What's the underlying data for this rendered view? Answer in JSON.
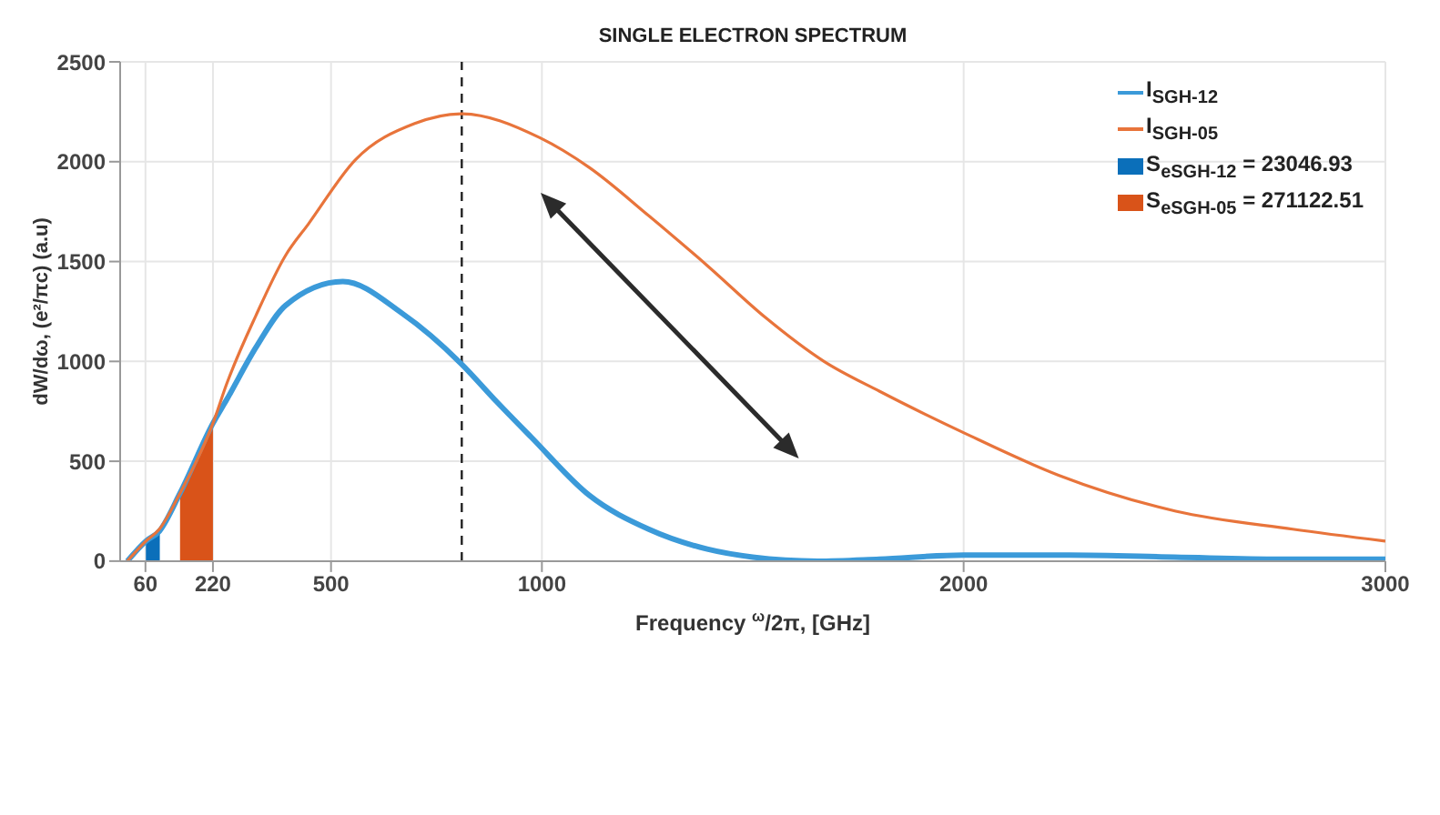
{
  "chart_data": {
    "type": "line",
    "title": "SINGLE ELECTRON SPECTRUM",
    "xlabel": "Frequency $^{ω}$/2π, [GHz]",
    "ylabel": "dW/dω, (e²/πc) (a.u)",
    "xlim": [
      0,
      3000
    ],
    "xticks": [
      60,
      220,
      500,
      1000,
      2000,
      3000
    ],
    "ylim": [
      0,
      2500
    ],
    "yticks": [
      0,
      500,
      1000,
      1500,
      2000,
      2500
    ],
    "grid": true,
    "legend": "top right",
    "marker": "none",
    "line_style": "solid",
    "ref_lines": [
      {
        "axis": "x",
        "value": 810,
        "color": "#222222",
        "line_style": "dashed"
      }
    ],
    "series": [
      {
        "name": "I$_{SGH-12}$",
        "color": "#3b9ad9",
        "x": [
          17,
          61,
          93,
          142,
          220,
          253,
          322,
          392,
          528,
          669,
          808,
          892,
          975,
          1112,
          1253,
          1392,
          1500,
          1654,
          1800,
          2000,
          2250,
          2500,
          2750,
          3000
        ],
        "values": [
          0,
          100,
          150,
          340,
          690,
          810,
          1070,
          1280,
          1400,
          1240,
          990,
          800,
          620,
          330,
          160,
          60,
          20,
          0,
          10,
          30,
          30,
          20,
          10,
          10
        ]
      },
      {
        "name": "I$_{SGH-05}$",
        "color": "#e8743b",
        "x": [
          17,
          61,
          93,
          142,
          220,
          253,
          322,
          392,
          447,
          558,
          697,
          808,
          995,
          1113,
          1253,
          1392,
          1530,
          1669,
          1801,
          2003,
          2225,
          2503,
          2780,
          3000
        ],
        "values": [
          0,
          100,
          160,
          340,
          690,
          890,
          1230,
          1530,
          1690,
          2010,
          2190,
          2240,
          2120,
          1970,
          1730,
          1480,
          1220,
          1000,
          850,
          640,
          430,
          250,
          160,
          100
        ]
      },
      {
        "name": "S$_{e}$$_{SGH-12}$ = 23046.93",
        "type": "area",
        "color": "#0b6fba",
        "x": [
          61,
          94
        ],
        "values": [
          100,
          150
        ]
      },
      {
        "name": "S$_{e}$$_{SGH-05}$ = 271122.51",
        "type": "area",
        "color": "#d95319",
        "x": [
          142,
          220
        ],
        "values": [
          340,
          690
        ]
      }
    ]
  }
}
